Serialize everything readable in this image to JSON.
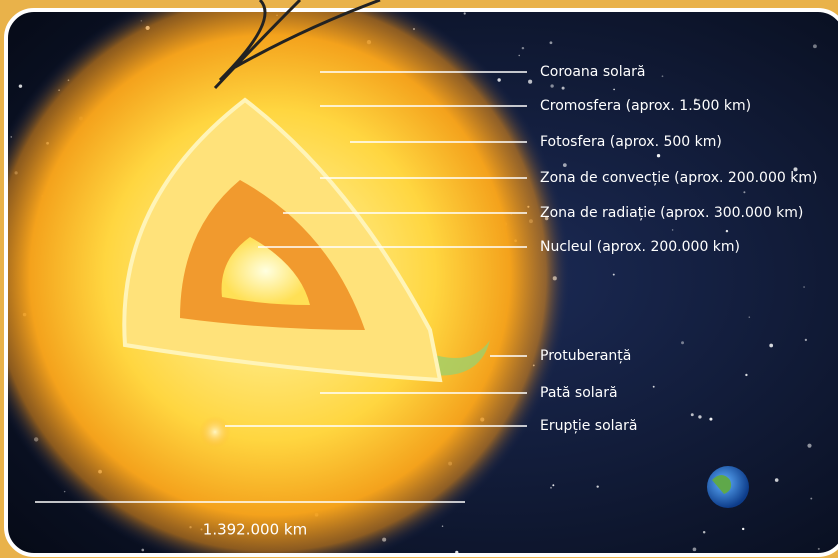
{
  "labels": [
    "Coroana solară",
    "Cromosfera (aprox. 1.500 km)",
    "Fotosfera (aprox. 500 km)",
    "Zona de convecție (aprox. 200.000 km)",
    "Zona de radiație (aprox. 300.000 km)",
    "Nucleul (aprox. 200.000 km)",
    "Protuberanță",
    "Pată solară",
    "Erupție solară"
  ],
  "scale": "1.392.000 km"
}
